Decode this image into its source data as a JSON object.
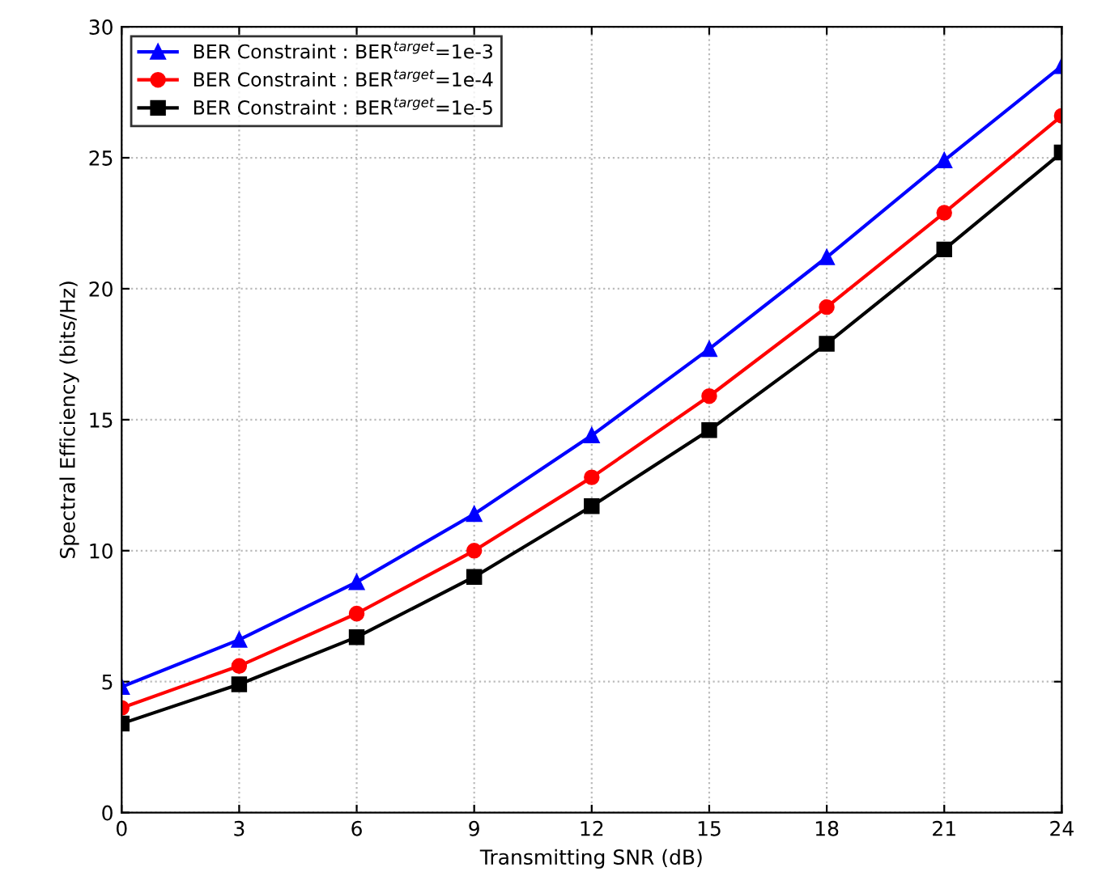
{
  "chart_data": {
    "type": "line",
    "xlabel": "Transmitting SNR (dB)",
    "ylabel": "Spectral Efficiency (bits/Hz)",
    "x": [
      0,
      3,
      6,
      9,
      12,
      15,
      18,
      21,
      24
    ],
    "series": [
      {
        "name": "BER Constraint : BER$^{target}$=1e-3",
        "color": "#0000ff",
        "marker": "triangle",
        "values": [
          4.8,
          6.6,
          8.8,
          11.4,
          14.4,
          17.7,
          21.2,
          24.9,
          28.5
        ]
      },
      {
        "name": "BER Constraint : BER$^{target}$=1e-4",
        "color": "#ff0000",
        "marker": "circle",
        "values": [
          4.0,
          5.6,
          7.6,
          10.0,
          12.8,
          15.9,
          19.3,
          22.9,
          26.6
        ]
      },
      {
        "name": "BER Constraint : BER$^{target}$=1e-5",
        "color": "#000000",
        "marker": "square",
        "values": [
          3.4,
          4.9,
          6.7,
          9.0,
          11.7,
          14.6,
          17.9,
          21.5,
          25.2
        ]
      }
    ],
    "xlim": [
      0,
      24
    ],
    "xticks": [
      0,
      3,
      6,
      9,
      12,
      15,
      18,
      21,
      24
    ],
    "ylim": [
      0,
      30
    ],
    "yticks": [
      0,
      5,
      10,
      15,
      20,
      25,
      30
    ],
    "grid": true,
    "legend": "top left",
    "line_style": "solid"
  }
}
